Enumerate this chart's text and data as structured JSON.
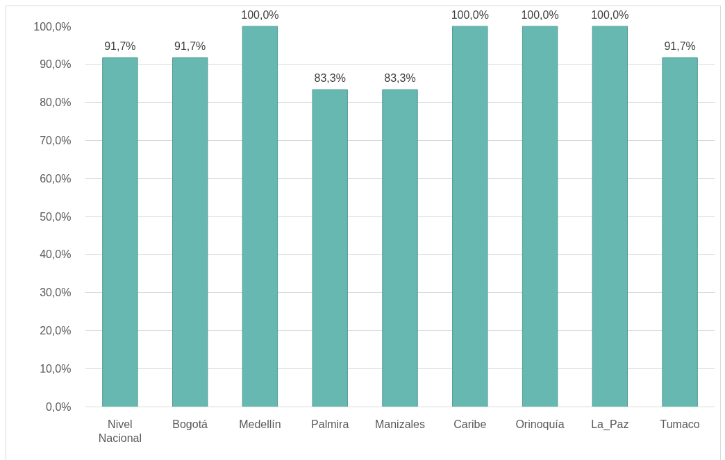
{
  "chart_data": {
    "type": "bar",
    "categories": [
      "Nivel Nacional",
      "Bogotá",
      "Medellín",
      "Palmira",
      "Manizales",
      "Caribe",
      "Orinoquía",
      "La_Paz",
      "Tumaco"
    ],
    "values": [
      91.7,
      91.7,
      100,
      83.3,
      83.3,
      100,
      100,
      100,
      91.7
    ],
    "value_labels": [
      "91,7%",
      "91,7%",
      "100,0%",
      "83,3%",
      "83,3%",
      "100,0%",
      "100,0%",
      "100,0%",
      "91,7%"
    ],
    "color": "#66b8b0",
    "ylim": [
      0,
      100
    ],
    "yticks": [
      {
        "value": 0,
        "label": "0,0%"
      },
      {
        "value": 10,
        "label": "10,0%"
      },
      {
        "value": 20,
        "label": "20,0%"
      },
      {
        "value": 30,
        "label": "30,0%"
      },
      {
        "value": 40,
        "label": "40,0%"
      },
      {
        "value": 50,
        "label": "50,0%"
      },
      {
        "value": 60,
        "label": "60,0%"
      },
      {
        "value": 70,
        "label": "70,0%"
      },
      {
        "value": 80,
        "label": "80,0%"
      },
      {
        "value": 90,
        "label": "90,0%"
      },
      {
        "value": 100,
        "label": "100,0%"
      }
    ],
    "grid": "y"
  }
}
